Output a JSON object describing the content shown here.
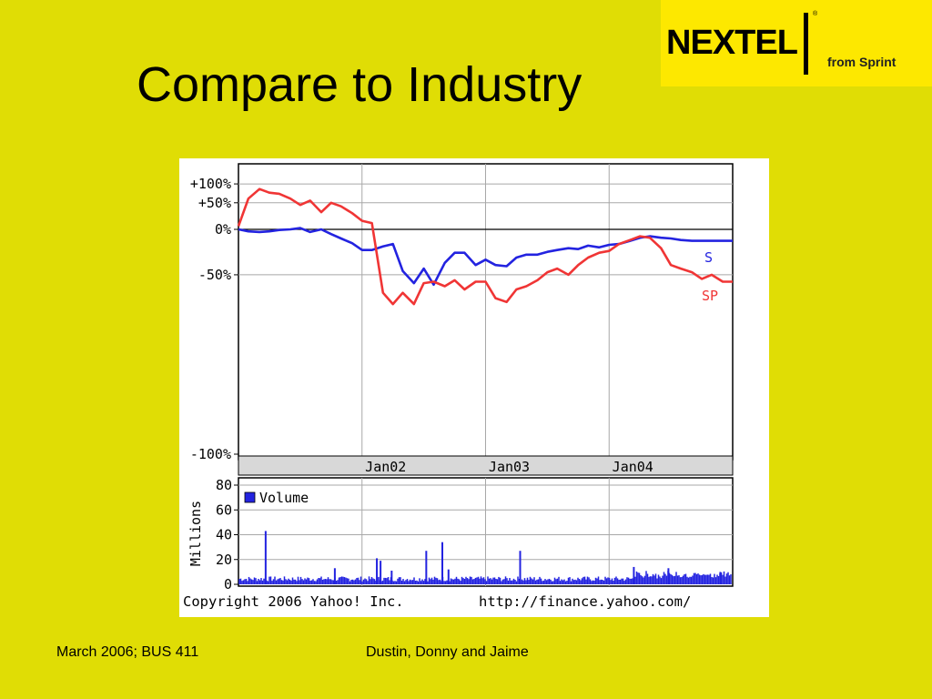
{
  "slide": {
    "title": "Compare to Industry",
    "logo": {
      "brand": "NEXTEL",
      "trademark": "®",
      "tagline": "from Sprint"
    },
    "footer_left": "March 2006; BUS 411",
    "footer_center": "Dustin, Donny and Jaime",
    "background_color": "#e0dd05"
  },
  "chart_data": [
    {
      "type": "line",
      "title": "",
      "ylabel": "",
      "y_scale": "log-percent",
      "y_ticks": [
        "+100%",
        "+50%",
        "0%",
        "-50%",
        "-100%"
      ],
      "x_ticks": [
        "Jan02",
        "Jan03",
        "Jan04"
      ],
      "grid": true,
      "series": [
        {
          "name": "S",
          "color": "#2323e0",
          "x": [
            2001.0,
            2001.08,
            2001.17,
            2001.25,
            2001.33,
            2001.42,
            2001.5,
            2001.58,
            2001.67,
            2001.75,
            2001.83,
            2001.92,
            2002.0,
            2002.08,
            2002.17,
            2002.25,
            2002.33,
            2002.42,
            2002.5,
            2002.58,
            2002.67,
            2002.75,
            2002.83,
            2002.92,
            2003.0,
            2003.08,
            2003.17,
            2003.25,
            2003.33,
            2003.42,
            2003.5,
            2003.58,
            2003.67,
            2003.75,
            2003.83,
            2003.92,
            2004.0,
            2004.08,
            2004.17,
            2004.25,
            2004.33,
            2004.42,
            2004.5,
            2004.58,
            2004.67,
            2004.75,
            2004.83,
            2004.92,
            2005.0
          ],
          "values": [
            0,
            -3,
            -4,
            -3,
            -1,
            0,
            2,
            -4,
            0,
            -7,
            -13,
            -19,
            -27,
            -27,
            -23,
            -20,
            -47,
            -56,
            -45,
            -57,
            -40,
            -30,
            -30,
            -42,
            -37,
            -42,
            -43,
            -35,
            -32,
            -32,
            -29,
            -27,
            -25,
            -26,
            -22,
            -24,
            -21,
            -20,
            -16,
            -12,
            -10,
            -12,
            -13,
            -15,
            -16,
            -16,
            -16,
            -16,
            -16
          ]
        },
        {
          "name": "SP",
          "color": "#f03535",
          "x": [
            2001.0,
            2001.08,
            2001.17,
            2001.25,
            2001.33,
            2001.42,
            2001.5,
            2001.58,
            2001.67,
            2001.75,
            2001.83,
            2001.92,
            2002.0,
            2002.08,
            2002.17,
            2002.25,
            2002.33,
            2002.42,
            2002.5,
            2002.58,
            2002.67,
            2002.75,
            2002.83,
            2002.92,
            2003.0,
            2003.08,
            2003.17,
            2003.25,
            2003.33,
            2003.42,
            2003.5,
            2003.58,
            2003.67,
            2003.75,
            2003.83,
            2003.92,
            2004.0,
            2004.08,
            2004.17,
            2004.25,
            2004.33,
            2004.42,
            2004.5,
            2004.58,
            2004.67,
            2004.75,
            2004.83,
            2004.92,
            2005.0
          ],
          "values": [
            5,
            60,
            85,
            75,
            72,
            60,
            45,
            55,
            30,
            50,
            42,
            28,
            14,
            10,
            -62,
            -68,
            -62,
            -68,
            -56,
            -55,
            -58,
            -54,
            -60,
            -55,
            -55,
            -65,
            -67,
            -60,
            -58,
            -54,
            -48,
            -45,
            -50,
            -42,
            -35,
            -30,
            -28,
            -20,
            -15,
            -10,
            -12,
            -25,
            -42,
            -45,
            -48,
            -53,
            -50,
            -55,
            -55
          ]
        }
      ]
    },
    {
      "type": "bar",
      "title": "",
      "ylabel": "Millions",
      "legend": "Volume",
      "legend_placement": "top-left",
      "ylim": [
        0,
        80
      ],
      "y_ticks": [
        80,
        60,
        40,
        20,
        0
      ],
      "x_range": [
        2001.0,
        2005.0
      ],
      "baseline": 4,
      "spikes": [
        {
          "x": 2001.22,
          "value": 43
        },
        {
          "x": 2001.78,
          "value": 13
        },
        {
          "x": 2002.12,
          "value": 21
        },
        {
          "x": 2002.15,
          "value": 19
        },
        {
          "x": 2002.24,
          "value": 11
        },
        {
          "x": 2002.52,
          "value": 27
        },
        {
          "x": 2002.65,
          "value": 34
        },
        {
          "x": 2002.7,
          "value": 12
        },
        {
          "x": 2003.28,
          "value": 27
        },
        {
          "x": 2004.2,
          "value": 14
        },
        {
          "x": 2004.48,
          "value": 13
        },
        {
          "x": 2004.9,
          "value": 10
        }
      ]
    }
  ],
  "chart_footer": {
    "copyright": "Copyright 2006 Yahoo! Inc.",
    "url": "http://finance.yahoo.com/"
  }
}
